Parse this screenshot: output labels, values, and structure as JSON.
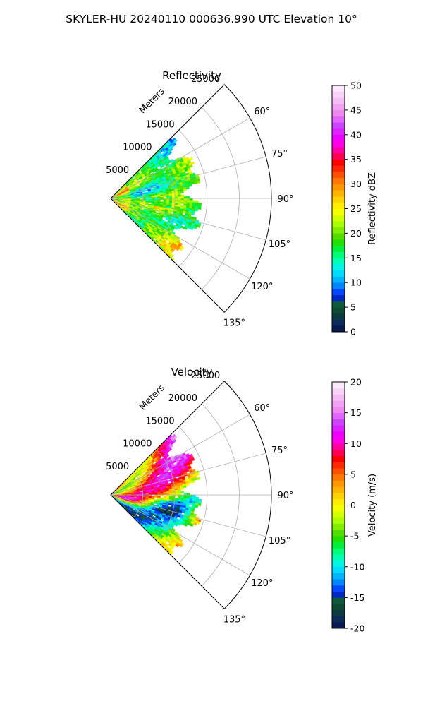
{
  "figure": {
    "suptitle": "SKYLER-HU  20240110  000636.990 UTC Elevation 10°",
    "background": "#ffffff"
  },
  "chart_data": [
    {
      "type": "heatmap",
      "projection": "polar-sector",
      "title": "Reflectivity",
      "radial_axis_label": "Meters",
      "r_ticks": [
        5000,
        10000,
        15000,
        20000,
        25000
      ],
      "r_tick_labels": [
        "5000",
        "10000",
        "15000",
        "20000",
        "25000"
      ],
      "r_max": 25000,
      "theta_range_deg": [
        45,
        135
      ],
      "theta_ticks": [
        60,
        75,
        90,
        105,
        120,
        135
      ],
      "theta_tick_labels": [
        "60°",
        "75°",
        "90°",
        "105°",
        "120°",
        "135°"
      ],
      "grid": true,
      "data_extent_m": 15500,
      "colorbar": {
        "label": "Reflectivity dBZ",
        "vmin": 0,
        "vmax": 50,
        "ticks": [
          0,
          5,
          10,
          15,
          20,
          25,
          30,
          35,
          40,
          45,
          50
        ],
        "tick_labels": [
          "0",
          "5",
          "10",
          "15",
          "20",
          "25",
          "30",
          "35",
          "40",
          "45",
          "50"
        ],
        "colors": [
          "#061a4d",
          "#0c2b5a",
          "#0d3a3f",
          "#0e4a32",
          "#0d5a3a",
          "#0027c8",
          "#0047ff",
          "#0087ff",
          "#00b4ff",
          "#00dcff",
          "#00f5e6",
          "#00ffb4",
          "#00ff78",
          "#00f03c",
          "#22e000",
          "#55dd00",
          "#80ee00",
          "#aaff00",
          "#d4ff00",
          "#f4ff00",
          "#ffee00",
          "#ffd200",
          "#ffb400",
          "#ff9600",
          "#ff7800",
          "#ff5000",
          "#ff2800",
          "#ff0000",
          "#ff0050",
          "#ff00a0",
          "#ff00e6",
          "#f000ff",
          "#dd22ff",
          "#cc44ff",
          "#e066ff",
          "#ee88ee",
          "#f2a2f2",
          "#f5bdf5",
          "#f8d4f8",
          "#fbe8fb"
        ]
      }
    },
    {
      "type": "heatmap",
      "projection": "polar-sector",
      "title": "Velocity",
      "radial_axis_label": "Meters",
      "r_ticks": [
        5000,
        10000,
        15000,
        20000,
        25000
      ],
      "r_tick_labels": [
        "5000",
        "10000",
        "15000",
        "20000",
        "25000"
      ],
      "r_max": 25000,
      "theta_range_deg": [
        45,
        135
      ],
      "theta_ticks": [
        60,
        75,
        90,
        105,
        120,
        135
      ],
      "theta_tick_labels": [
        "60°",
        "75°",
        "90°",
        "105°",
        "120°",
        "135°"
      ],
      "grid": true,
      "data_extent_m": 15500,
      "colorbar": {
        "label": "Velocity (m/s)",
        "vmin": -20,
        "vmax": 20,
        "ticks": [
          -20,
          -15,
          -10,
          -5,
          0,
          5,
          10,
          15,
          20
        ],
        "tick_labels": [
          "-20",
          "-15",
          "-10",
          "-5",
          "0",
          "5",
          "10",
          "15",
          "20"
        ],
        "colors": [
          "#061a4d",
          "#0c2b5a",
          "#0d3a3f",
          "#0e4a32",
          "#0d5a3a",
          "#0027c8",
          "#0047ff",
          "#0087ff",
          "#00b4ff",
          "#00dcff",
          "#00f5e6",
          "#00ffb4",
          "#00ff78",
          "#00f03c",
          "#22e000",
          "#55dd00",
          "#80ee00",
          "#aaff00",
          "#d4ff00",
          "#f4ff00",
          "#ffee00",
          "#ffd200",
          "#ffb400",
          "#ff9600",
          "#ff7800",
          "#ff5000",
          "#ff2800",
          "#ff0000",
          "#ff0050",
          "#ff00a0",
          "#ff00e6",
          "#f000ff",
          "#dd22ff",
          "#cc44ff",
          "#e066ff",
          "#ee88ee",
          "#f2a2f2",
          "#f5bdf5",
          "#f8d4f8",
          "#fbe8fb"
        ]
      }
    }
  ]
}
